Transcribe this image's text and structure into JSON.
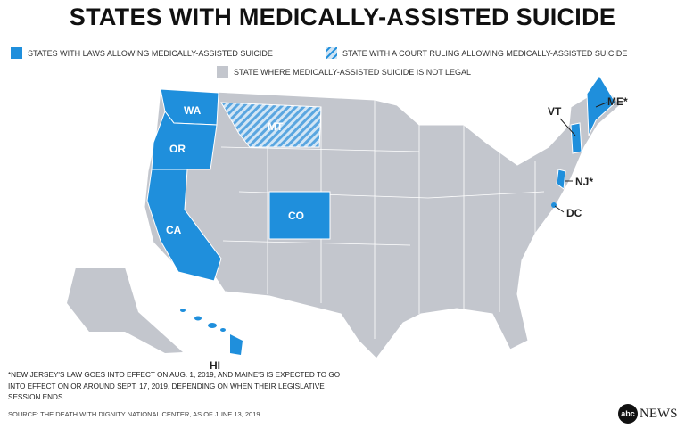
{
  "title": "STATES WITH MEDICALLY-ASSISTED SUICIDE",
  "legend": [
    {
      "label": "STATES WITH LAWS ALLOWING MEDICALLY-ASSISTED SUICIDE",
      "style": "solid"
    },
    {
      "label": "STATE WITH A COURT RULING ALLOWING MEDICALLY-ASSISTED SUICIDE",
      "style": "hatched"
    },
    {
      "label": "STATE WHERE MEDICALLY-ASSISTED SUICIDE IS NOT LEGAL",
      "style": "gray"
    }
  ],
  "colors": {
    "legal": "#1f8fdc",
    "court": "#7fb6e0",
    "not_legal": "#c3c6cd",
    "label_light": "#ffffff",
    "label_dark": "#222222"
  },
  "states": {
    "law": [
      "WA",
      "OR",
      "CA",
      "CO",
      "VT",
      "ME*",
      "NJ*",
      "DC",
      "HI"
    ],
    "court": [
      "MT"
    ]
  },
  "labels": {
    "wa": "WA",
    "or": "OR",
    "ca": "CA",
    "co": "CO",
    "mt": "MT",
    "vt": "VT",
    "me": "ME*",
    "nj": "NJ*",
    "dc": "DC",
    "hi": "HI"
  },
  "footnote": "*NEW JERSEY'S LAW GOES INTO EFFECT ON AUG. 1, 2019, AND MAINE'S IS EXPECTED TO GO INTO EFFECT ON OR AROUND SEPT. 17, 2019, DEPENDING ON WHEN THEIR LEGISLATIVE SESSION ENDS.",
  "source": "SOURCE: THE DEATH WITH DIGNITY NATIONAL CENTER, AS OF JUNE 13, 2019.",
  "logo": {
    "mark": "abc",
    "text": "NEWS"
  }
}
